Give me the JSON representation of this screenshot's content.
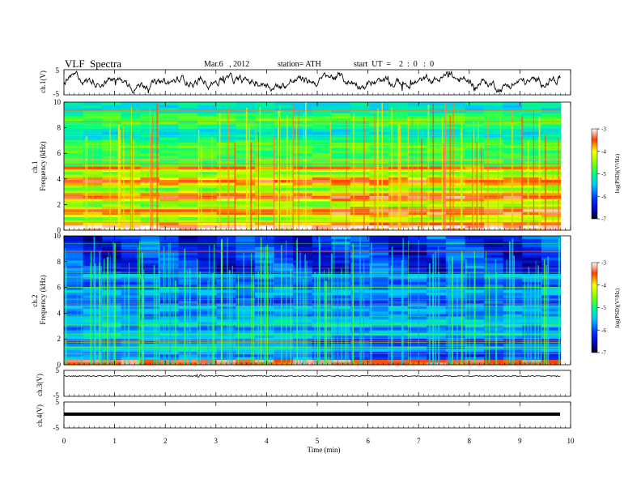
{
  "header": {
    "title": "VLF  Spectra",
    "date": "Mar.6   , 2012",
    "station": "station= ATH",
    "start": "start  UT  =    2  :  0   :  0"
  },
  "chart_data": [
    {
      "type": "line",
      "name": "ch1-waveform",
      "ylabel": "ch.1(V)",
      "ylim": [
        -5,
        5
      ],
      "yticks": [
        "5",
        "-5"
      ]
    },
    {
      "type": "heatmap",
      "name": "ch1-spectrogram",
      "ylabel": "ch.1\nFrequency  (kHz)",
      "ylabel_lines": [
        "ch.1",
        "Frequency  (kHz)"
      ],
      "ylim": [
        0,
        10
      ],
      "yticks": [
        "0",
        "2",
        "4",
        "6",
        "8",
        "10"
      ],
      "colorbar": {
        "label": "log(PSD)(V²/Hz)",
        "range": [
          -7,
          -3
        ],
        "ticks": [
          "-3",
          "-4",
          "-5",
          "-6",
          "-7"
        ]
      }
    },
    {
      "type": "heatmap",
      "name": "ch2-spectrogram",
      "ylabel": "ch.2\nFrequency  (kHz)",
      "ylabel_lines": [
        "ch.2",
        "Frequency  (kHz)"
      ],
      "ylim": [
        0,
        10
      ],
      "yticks": [
        "0",
        "2",
        "4",
        "6",
        "8",
        "10"
      ],
      "colorbar": {
        "label": "log(PSD)(V²/Hz)",
        "range": [
          -7,
          -3
        ],
        "ticks": [
          "-3",
          "-4",
          "-5",
          "-6",
          "-7"
        ]
      }
    },
    {
      "type": "line",
      "name": "ch3-waveform",
      "ylabel": "ch.3(V)",
      "ylim": [
        -5,
        5
      ],
      "yticks": [
        "5",
        "-5"
      ]
    },
    {
      "type": "line",
      "name": "ch4-waveform",
      "ylabel": "ch.4(V)",
      "ylim": [
        -5,
        5
      ],
      "yticks": [
        "5",
        "-5"
      ]
    }
  ],
  "xaxis": {
    "label": "Time  (min)",
    "range": [
      0,
      10
    ],
    "ticks": [
      "0",
      "1",
      "2",
      "3",
      "4",
      "5",
      "6",
      "7",
      "8",
      "9",
      "10"
    ],
    "data_end": 9.8
  }
}
